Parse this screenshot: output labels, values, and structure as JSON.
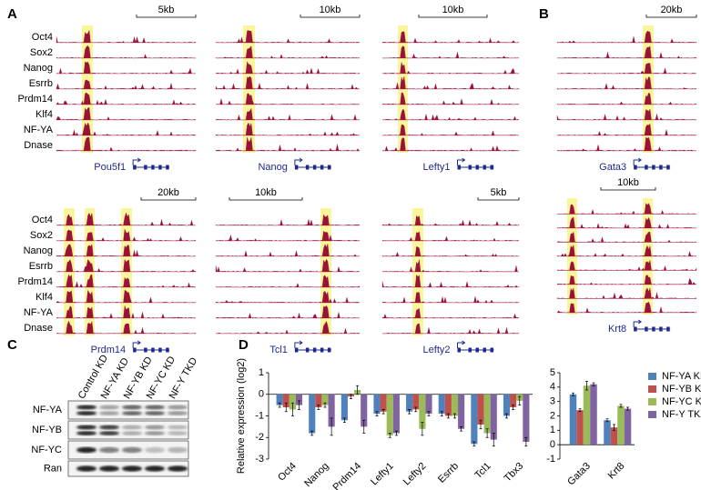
{
  "panel_labels": [
    "A",
    "B",
    "C",
    "D"
  ],
  "browser": {
    "tracks": [
      "Oct4",
      "Sox2",
      "Nanog",
      "Esrrb",
      "Prdm14",
      "Klf4",
      "NF-YA",
      "Dnase"
    ],
    "loci": [
      {
        "gene": "Pou5f1",
        "scale": "5kb"
      },
      {
        "gene": "Nanog",
        "scale": "10kb"
      },
      {
        "gene": "Lefty1",
        "scale": "10kb"
      },
      {
        "gene": "Gata3",
        "scale": "20kb"
      },
      {
        "gene": "Prdm14",
        "scale": "20kb"
      },
      {
        "gene": "Tcl1",
        "scale": "10kb"
      },
      {
        "gene": "Lefty2",
        "scale": "5kb"
      },
      {
        "gene": "Krt8",
        "scale": "10kb"
      }
    ]
  },
  "western": {
    "lanes": [
      "Control KD",
      "NF-YA KD",
      "NF-YB KD",
      "NF-YC KD",
      "NF-Y TKD"
    ],
    "proteins": [
      "NF-YA",
      "NF-YB",
      "NF-YC",
      "Ran"
    ]
  },
  "chart_data": [
    {
      "type": "bar",
      "y_label": "Relative expression (log2)",
      "categories": [
        "Oct4",
        "Nanog",
        "Prdm14",
        "Lefty1",
        "Lefty2",
        "Esrrb",
        "Tcl1",
        "Tbx3"
      ],
      "series": [
        {
          "color": "#4f81bd",
          "values": [
            -0.5,
            -1.8,
            -1.2,
            -0.9,
            -0.8,
            -0.9,
            -2.3,
            -1.0
          ],
          "errors": [
            0.1,
            0.1,
            0.1,
            0.1,
            0.1,
            0.1,
            0.1,
            0.1
          ]
        },
        {
          "color": "#c0504d",
          "values": [
            -0.6,
            -0.6,
            -0.1,
            -0.8,
            -0.7,
            -1.0,
            -1.4,
            -0.6
          ],
          "errors": [
            0.2,
            0.1,
            0.1,
            0.1,
            0.1,
            0.1,
            0.2,
            0.1
          ]
        },
        {
          "color": "#9bbb59",
          "values": [
            -0.7,
            -0.5,
            0.2,
            -1.9,
            -1.6,
            -1.0,
            -1.8,
            -0.3
          ],
          "errors": [
            0.3,
            0.1,
            0.2,
            0.1,
            0.3,
            0.1,
            0.2,
            0.2
          ]
        },
        {
          "color": "#8064a2",
          "values": [
            -0.5,
            -1.5,
            -1.5,
            -1.8,
            -0.9,
            -1.6,
            -2.1,
            -2.2
          ],
          "errors": [
            0.2,
            0.4,
            0.3,
            0.1,
            0.1,
            0.1,
            0.3,
            0.2
          ]
        }
      ],
      "ylim": [
        -3,
        1
      ],
      "yticks": [
        -3,
        -2,
        -1,
        0,
        1
      ]
    },
    {
      "type": "bar",
      "categories": [
        "Gata3",
        "Krt8"
      ],
      "series": [
        {
          "name": "NF-YA KD",
          "color": "#4f81bd",
          "values": [
            3.5,
            1.7
          ],
          "errors": [
            0.1,
            0.1
          ]
        },
        {
          "name": "NF-YB KD",
          "color": "#c0504d",
          "values": [
            2.4,
            1.2
          ],
          "errors": [
            0.1,
            0.2
          ]
        },
        {
          "name": "NF-YC KD",
          "color": "#9bbb59",
          "values": [
            4.1,
            2.7
          ],
          "errors": [
            0.3,
            0.1
          ]
        },
        {
          "name": "NF-Y TKD",
          "color": "#8064a2",
          "values": [
            4.2,
            2.5
          ],
          "errors": [
            0.1,
            0.1
          ]
        }
      ],
      "ylim": [
        -1,
        5
      ],
      "yticks": [
        -1,
        0,
        1,
        2,
        3,
        4,
        5
      ],
      "legend": "right"
    }
  ]
}
